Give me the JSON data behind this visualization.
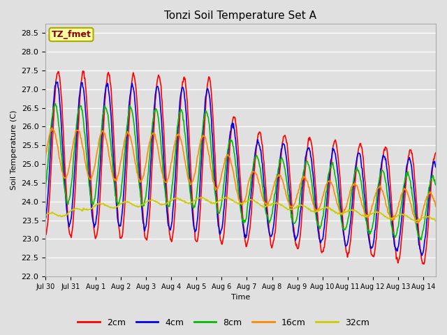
{
  "title": "Tonzi Soil Temperature Set A",
  "ylabel": "Soil Temperature (C)",
  "xlabel": "Time",
  "annotation": "TZ_fmet",
  "annotation_color": "#8B0000",
  "annotation_bg": "#FFFFA0",
  "annotation_edge": "#AAAA00",
  "ylim": [
    22.0,
    28.75
  ],
  "yticks": [
    22.0,
    22.5,
    23.0,
    23.5,
    24.0,
    24.5,
    25.0,
    25.5,
    26.0,
    26.5,
    27.0,
    27.5,
    28.0,
    28.5
  ],
  "xtick_labels": [
    "Jul 30",
    "Jul 31",
    "Aug 1",
    "Aug 2",
    "Aug 3",
    "Aug 4",
    "Aug 5",
    "Aug 6",
    "Aug 7",
    "Aug 8",
    "Aug 9",
    "Aug 10",
    "Aug 11",
    "Aug 12",
    "Aug 13",
    "Aug 14"
  ],
  "line_colors": {
    "2cm": "#FF0000",
    "4cm": "#0000EE",
    "8cm": "#00BB00",
    "16cm": "#FF8800",
    "32cm": "#CCCC00"
  },
  "legend_labels": [
    "2cm",
    "4cm",
    "8cm",
    "16cm",
    "32cm"
  ],
  "fig_facecolor": "#E0E0E0",
  "ax_facecolor": "#E0E0E0",
  "grid_color": "#FFFFFF",
  "title_fontsize": 11,
  "axis_label_fontsize": 8,
  "tick_fontsize": 7,
  "legend_fontsize": 9,
  "line_width": 1.2
}
